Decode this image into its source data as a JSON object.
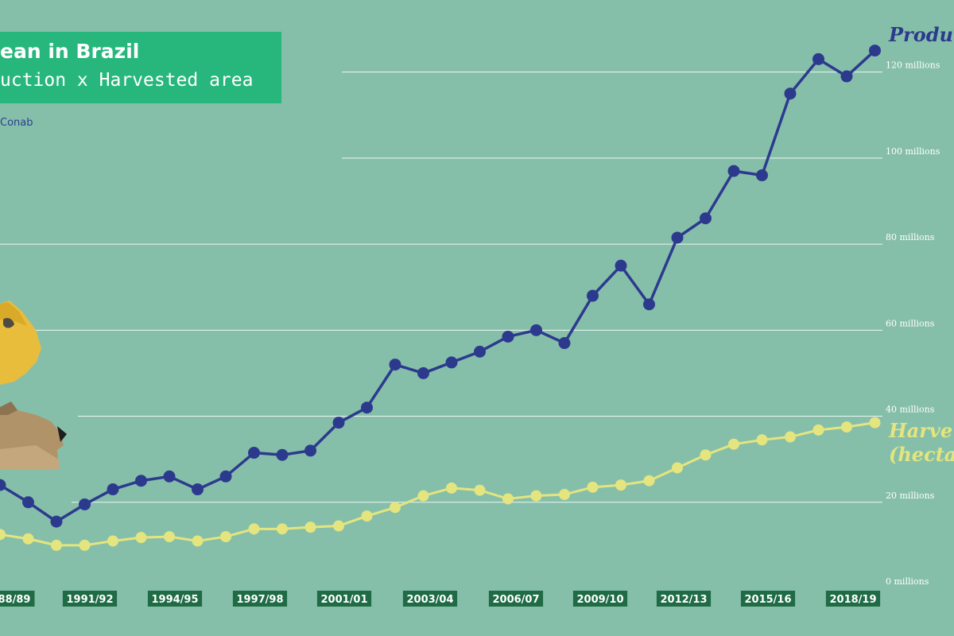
{
  "title": {
    "main": "ean in Brazil",
    "sub": "uction x Harvested area",
    "source": "Conab"
  },
  "colors": {
    "background": "#86bfa9",
    "title_box": "#27b77c",
    "production": "#2c3a8e",
    "harvested": "#e4e57e",
    "x_label_bg": "#1f6b45"
  },
  "chart_data": {
    "type": "line",
    "title": "ean in Brazil — uction x Harvested area",
    "xlabel": "",
    "ylabel": "",
    "y_ticks": [
      {
        "value": 0,
        "label": "0 millions"
      },
      {
        "value": 20,
        "label": "20 millions"
      },
      {
        "value": 40,
        "label": "40 millions"
      },
      {
        "value": 60,
        "label": "60 millions"
      },
      {
        "value": 80,
        "label": "80 millions"
      },
      {
        "value": 100,
        "label": "100 millions"
      },
      {
        "value": 120,
        "label": "120 millions"
      }
    ],
    "ylim": [
      0,
      124
    ],
    "x_tick_labels": [
      "88/89",
      "1991/92",
      "1994/95",
      "1997/98",
      "2001/01",
      "2003/04",
      "2006/07",
      "2009/10",
      "2012/13",
      "2015/16",
      "2018/19"
    ],
    "series": [
      {
        "name": "Produ",
        "values": [
          24.0,
          20.0,
          15.5,
          19.5,
          23.0,
          25.0,
          26.0,
          23.0,
          26.0,
          31.5,
          31.0,
          32.0,
          38.5,
          42.0,
          52.0,
          50.0,
          52.5,
          55.0,
          58.5,
          60.0,
          57.0,
          68.0,
          75.0,
          66.0,
          81.5,
          86.0,
          97.0,
          96.0,
          115.0,
          123.0,
          119.0,
          125.0
        ]
      },
      {
        "name": "Harve (hecta",
        "values": [
          12.5,
          11.5,
          10.0,
          10.0,
          11.0,
          11.8,
          12.0,
          11.0,
          12.0,
          13.8,
          13.8,
          14.2,
          14.5,
          16.8,
          18.8,
          21.5,
          23.3,
          22.8,
          20.8,
          21.5,
          21.8,
          23.5,
          24.0,
          25.0,
          28.0,
          31.0,
          33.5,
          34.5,
          35.2,
          36.8,
          37.5,
          38.5
        ]
      }
    ],
    "legend_labels": {
      "production": "Produ",
      "harvested_line1": "Harve",
      "harvested_line2": "(hecta"
    }
  }
}
